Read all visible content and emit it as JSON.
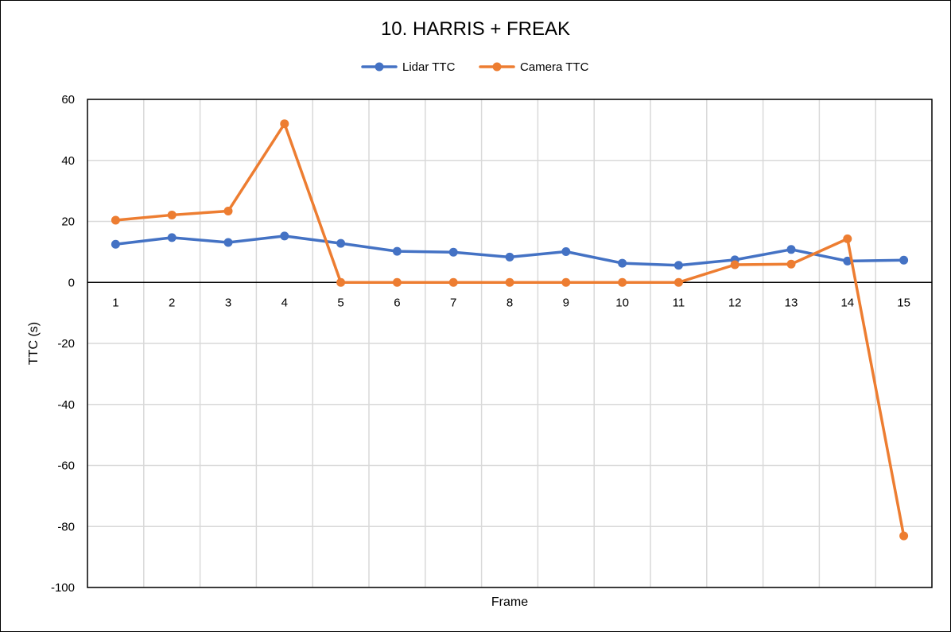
{
  "chart_data": {
    "type": "line",
    "title": "10. HARRIS + FREAK",
    "xlabel": "Frame",
    "ylabel": "TTC (s)",
    "ylim": [
      -100,
      60
    ],
    "yticks": [
      "60",
      "40",
      "20",
      "0",
      "-20",
      "-40",
      "-60",
      "-80",
      "-100"
    ],
    "categories": [
      "1",
      "2",
      "3",
      "4",
      "5",
      "6",
      "7",
      "8",
      "9",
      "10",
      "11",
      "12",
      "13",
      "14",
      "15"
    ],
    "grid": true,
    "legend_position": "top",
    "series": [
      {
        "name": "Lidar TTC",
        "color": "#4472C4",
        "values": [
          12.5,
          14.7,
          13.1,
          15.2,
          12.8,
          10.2,
          9.9,
          8.3,
          10.1,
          6.3,
          5.6,
          7.4,
          10.8,
          7.0,
          7.3
        ]
      },
      {
        "name": "Camera TTC",
        "color": "#ED7D31",
        "values": [
          20.4,
          22.1,
          23.4,
          52.0,
          0,
          0,
          0,
          0,
          0,
          0,
          0,
          5.8,
          6.0,
          14.3,
          -83.1
        ]
      }
    ]
  }
}
